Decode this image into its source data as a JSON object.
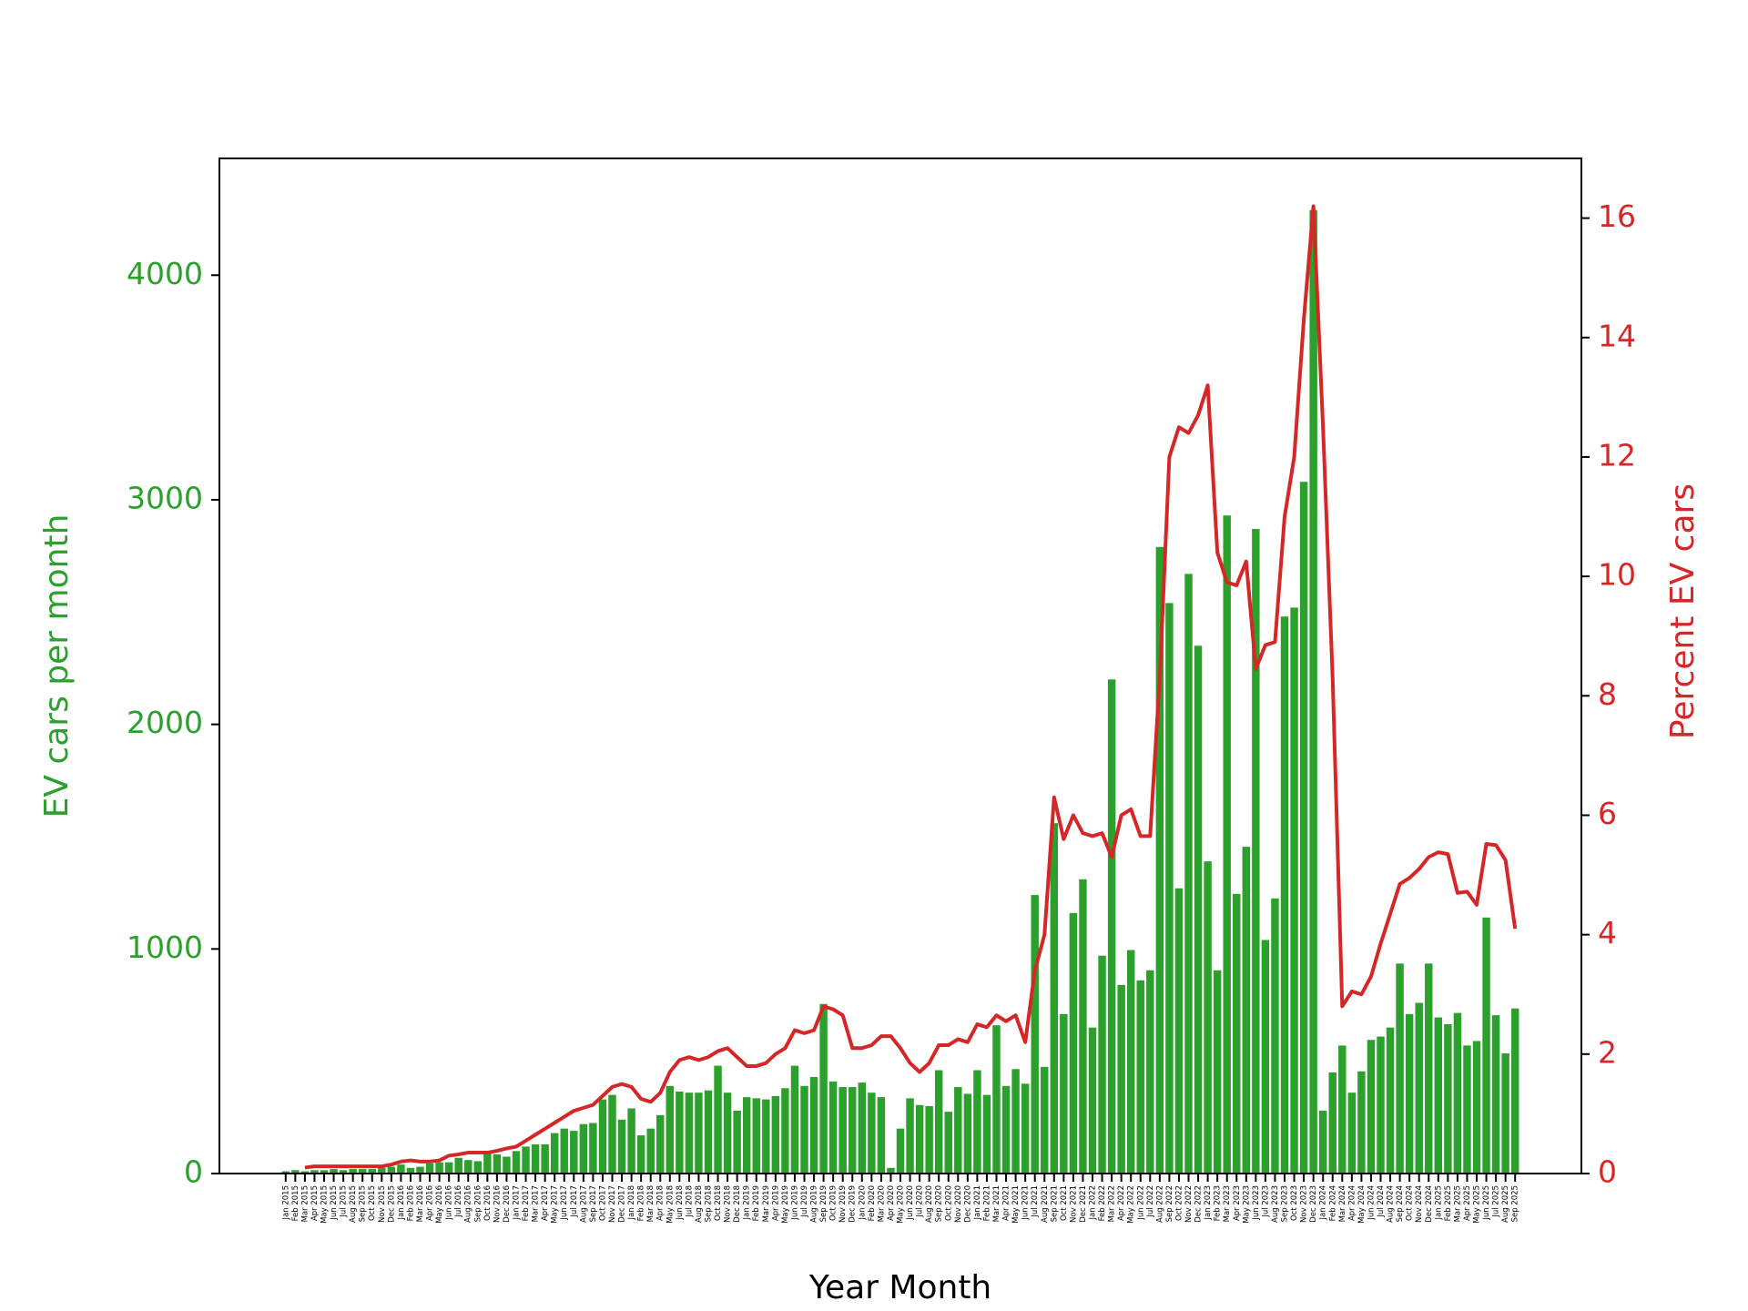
{
  "chart_data": {
    "type": "bar_line",
    "xlabel": "Year Month",
    "categories": [
      "Jan 2015",
      "Feb 2015",
      "Mar 2015",
      "Apr 2015",
      "May 2015",
      "Jun 2015",
      "Jul 2015",
      "Aug 2015",
      "Sep 2015",
      "Oct 2015",
      "Nov 2015",
      "Dec 2015",
      "Jan 2016",
      "Feb 2016",
      "Mar 2016",
      "Apr 2016",
      "May 2016",
      "Jun 2016",
      "Jul 2016",
      "Aug 2016",
      "Sep 2016",
      "Oct 2016",
      "Nov 2016",
      "Dec 2016",
      "Jan 2017",
      "Feb 2017",
      "Mar 2017",
      "Apr 2017",
      "May 2017",
      "Jun 2017",
      "Jul 2017",
      "Aug 2017",
      "Sep 2017",
      "Oct 2017",
      "Nov 2017",
      "Dec 2017",
      "Jan 2018",
      "Feb 2018",
      "Mar 2018",
      "Apr 2018",
      "May 2018",
      "Jun 2018",
      "Jul 2018",
      "Aug 2018",
      "Sep 2018",
      "Oct 2018",
      "Nov 2018",
      "Dec 2018",
      "Jan 2019",
      "Feb 2019",
      "Mar 2019",
      "Apr 2019",
      "May 2019",
      "Jun 2019",
      "Jul 2019",
      "Aug 2019",
      "Sep 2019",
      "Oct 2019",
      "Nov 2019",
      "Dec 2019",
      "Jan 2020",
      "Feb 2020",
      "Mar 2020",
      "Apr 2020",
      "May 2020",
      "Jun 2020",
      "Jul 2020",
      "Aug 2020",
      "Sep 2020",
      "Oct 2020",
      "Nov 2020",
      "Dec 2020",
      "Jan 2021",
      "Feb 2021",
      "Mar 2021",
      "Apr 2021",
      "May 2021",
      "Jun 2021",
      "Jul 2021",
      "Aug 2021",
      "Sep 2021",
      "Oct 2021",
      "Nov 2021",
      "Dec 2021",
      "Jan 2022",
      "Feb 2022",
      "Mar 2022",
      "Apr 2022",
      "May 2022",
      "Jun 2022",
      "Jul 2022",
      "Aug 2022",
      "Sep 2022",
      "Oct 2022",
      "Nov 2022",
      "Dec 2022",
      "Jan 2023",
      "Feb 2023",
      "Mar 2023",
      "Apr 2023",
      "May 2023",
      "Jun 2023",
      "Jul 2023",
      "Aug 2023",
      "Sep 2023",
      "Oct 2023",
      "Nov 2023",
      "Dec 2023",
      "Jan 2024",
      "Feb 2024",
      "Mar 2024",
      "Apr 2024",
      "May 2024",
      "Jun 2024",
      "Jul 2024",
      "Aug 2024",
      "Sep 2024",
      "Oct 2024",
      "Nov 2024",
      "Dec 2024",
      "Jan 2025",
      "Feb 2025",
      "Mar 2025",
      "Apr 2025",
      "May 2025",
      "Jun 2025",
      "Jul 2025",
      "Aug 2025",
      "Sep 2025"
    ],
    "series": [
      {
        "name": "EV cars per month",
        "color": "#2ca02c",
        "type": "bar",
        "axis": "y",
        "values": [
          10,
          15,
          10,
          15,
          15,
          20,
          15,
          20,
          20,
          20,
          25,
          30,
          40,
          25,
          30,
          45,
          50,
          50,
          70,
          60,
          55,
          90,
          85,
          75,
          100,
          120,
          130,
          130,
          180,
          200,
          190,
          220,
          225,
          330,
          350,
          240,
          290,
          170,
          200,
          260,
          390,
          365,
          360,
          360,
          370,
          480,
          360,
          280,
          340,
          335,
          330,
          345,
          380,
          480,
          390,
          430,
          755,
          410,
          385,
          385,
          405,
          360,
          340,
          25,
          200,
          335,
          305,
          300,
          460,
          275,
          385,
          355,
          460,
          350,
          660,
          390,
          465,
          400,
          1240,
          475,
          1560,
          710,
          1160,
          1310,
          650,
          970,
          2200,
          840,
          995,
          860,
          905,
          2790,
          2540,
          1270,
          2670,
          2350,
          1390,
          905,
          2930,
          1245,
          1455,
          2870,
          1040,
          1225,
          2480,
          2520,
          3080,
          4290,
          280,
          450,
          570,
          360,
          455,
          595,
          610,
          650,
          935,
          710,
          760,
          935,
          695,
          665,
          715,
          570,
          590,
          1140,
          705,
          535,
          735
        ]
      },
      {
        "name": "Percent EV cars",
        "color": "#d62728",
        "type": "line",
        "axis": "y2",
        "values": [
          null,
          null,
          0.1,
          0.12,
          0.12,
          0.12,
          0.12,
          0.12,
          0.12,
          0.12,
          0.12,
          0.15,
          0.2,
          0.22,
          0.2,
          0.2,
          0.22,
          0.3,
          0.32,
          0.35,
          0.35,
          0.35,
          0.38,
          0.42,
          0.45,
          0.55,
          0.65,
          0.75,
          0.85,
          0.95,
          1.05,
          1.1,
          1.15,
          1.3,
          1.45,
          1.5,
          1.45,
          1.25,
          1.2,
          1.35,
          1.7,
          1.9,
          1.95,
          1.9,
          1.95,
          2.05,
          2.1,
          1.95,
          1.8,
          1.8,
          1.85,
          2.0,
          2.1,
          2.4,
          2.35,
          2.4,
          2.8,
          2.75,
          2.65,
          2.1,
          2.1,
          2.15,
          2.3,
          2.3,
          2.1,
          1.85,
          1.7,
          1.85,
          2.15,
          2.15,
          2.25,
          2.2,
          2.5,
          2.45,
          2.65,
          2.55,
          2.65,
          2.2,
          3.4,
          4.0,
          6.3,
          5.6,
          6.0,
          5.7,
          5.65,
          5.7,
          5.3,
          6.0,
          6.1,
          5.65,
          5.65,
          8.3,
          12.0,
          12.5,
          12.4,
          12.7,
          13.2,
          10.4,
          9.9,
          9.85,
          10.25,
          8.45,
          8.85,
          8.9,
          11.0,
          12.0,
          14.3,
          16.2,
          12.5,
          8.3,
          2.8,
          3.05,
          3.0,
          3.3,
          3.85,
          4.35,
          4.85,
          4.95,
          5.1,
          5.3,
          5.38,
          5.35,
          4.7,
          4.72,
          4.5,
          5.52,
          5.5,
          5.25,
          4.1
        ]
      }
    ],
    "ylim": [
      0,
      4520
    ],
    "yticks": [
      0,
      1000,
      2000,
      3000,
      4000
    ],
    "y2lim": [
      0,
      17
    ],
    "y2ticks": [
      0,
      2,
      4,
      6,
      8,
      10,
      12,
      14,
      16
    ]
  }
}
